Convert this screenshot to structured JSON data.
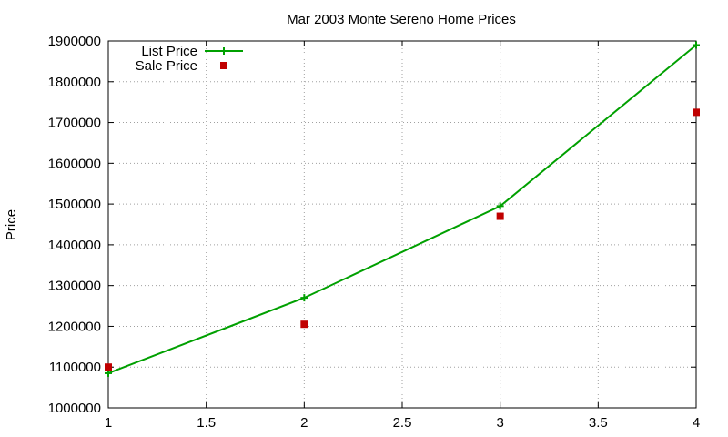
{
  "chart_data": {
    "type": "line",
    "title": "Mar 2003 Monte Sereno Home Prices",
    "xlabel": "",
    "ylabel": "Price",
    "xlim": [
      1,
      4
    ],
    "ylim": [
      1000000,
      1900000
    ],
    "xticks": [
      1,
      1.5,
      2,
      2.5,
      3,
      3.5,
      4
    ],
    "yticks": [
      1000000,
      1100000,
      1200000,
      1300000,
      1400000,
      1500000,
      1600000,
      1700000,
      1800000,
      1900000
    ],
    "grid": true,
    "legend_position": "top-left",
    "series": [
      {
        "name": "List Price",
        "style": "linespoints",
        "marker": "plus",
        "color": "#00a000",
        "x": [
          1,
          2,
          3,
          4
        ],
        "y": [
          1085000,
          1270000,
          1495000,
          1890000
        ]
      },
      {
        "name": "Sale Price",
        "style": "points",
        "marker": "square",
        "color": "#c00000",
        "x": [
          1,
          2,
          3,
          4
        ],
        "y": [
          1100000,
          1205000,
          1470000,
          1725000
        ]
      }
    ]
  }
}
